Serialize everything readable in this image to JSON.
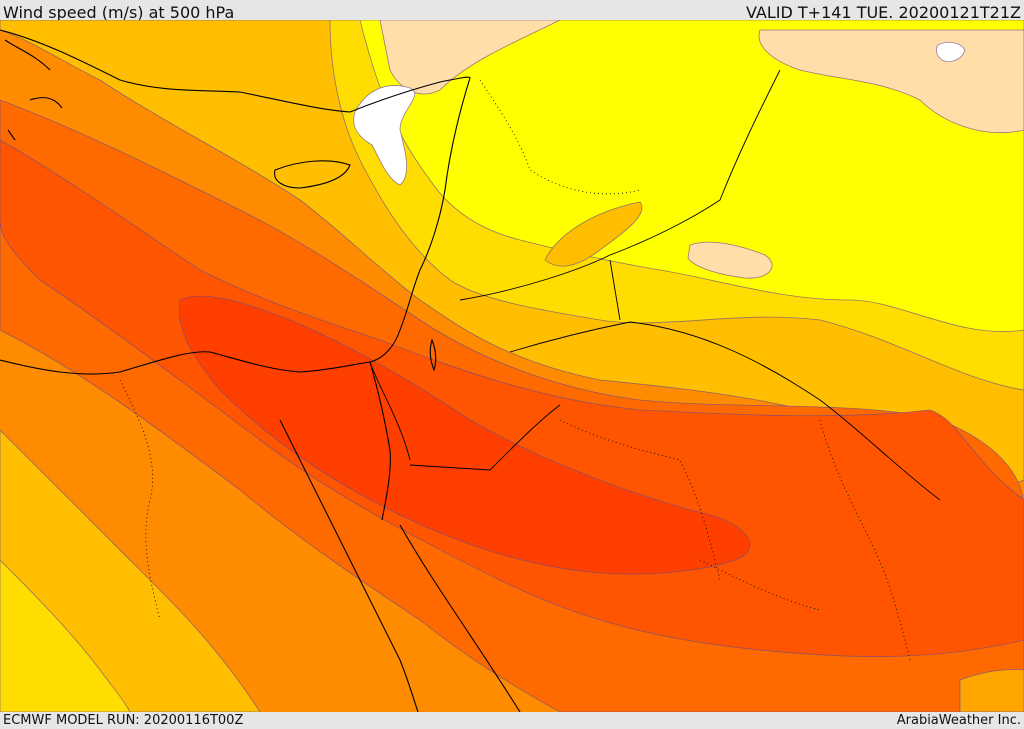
{
  "header": {
    "title": "Wind speed (m/s) at 500 hPa",
    "valid": "VALID T+141 TUE. 20200121T21Z"
  },
  "footer": {
    "model_run": "ECMWF MODEL RUN: 20200116T00Z",
    "credit": "ArabiaWeather Inc."
  },
  "palette": {
    "peak": "#ff3f00",
    "very_strong": "#ff5500",
    "strong": "#ff6a00",
    "moderate_high": "#ff8c00",
    "moderate": "#ffa500",
    "moderate_low": "#ffbf00",
    "low": "#ffdd00",
    "weak": "#ffff00",
    "calm": "#ffdeaa",
    "minimum": "#ffffff",
    "coastline": "#000000",
    "contour": "#6a4a8a"
  }
}
